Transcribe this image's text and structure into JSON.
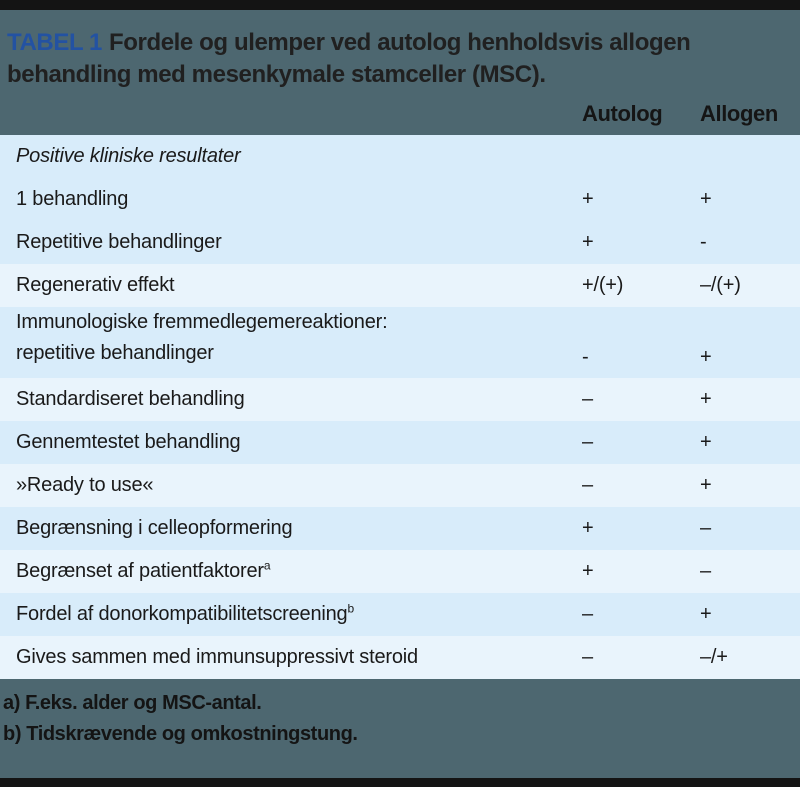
{
  "theme": {
    "page_bg": "#4d6770",
    "bar": "#141414",
    "tabel_blue": "#2352a2",
    "title_text": "#202020",
    "row_dark": "#d8ecfa",
    "row_light": "#e9f4fc",
    "body_text": "#1a1a1a",
    "header_text": "#151515",
    "footnote_text": "#141414"
  },
  "header": {
    "table_label": "TABEL 1",
    "title": "Fordele og ulemper ved autolog henholdsvis allogen behandling med mesenkymale stamceller (MSC)."
  },
  "columns": {
    "autolog": "Autolog",
    "allogen": "Allogen"
  },
  "table": {
    "rows": [
      {
        "label": "Positive kliniske resultater",
        "italic": true,
        "autolog": "",
        "allogen": "",
        "shade": "dark"
      },
      {
        "label": "1 behandling",
        "autolog": "+",
        "allogen": "+",
        "shade": "dark"
      },
      {
        "label": "Repetitive behandlinger",
        "autolog": "+",
        "allogen": "-",
        "shade": "dark"
      },
      {
        "label": "Regenerativ effekt",
        "autolog": "+/(+)",
        "allogen": "–/(+)",
        "shade": "light"
      },
      {
        "label": "Immunologiske fremmedlegemereaktioner:",
        "label2": "repetitive behandlinger",
        "autolog": "-",
        "allogen": "+",
        "shade": "dark"
      },
      {
        "label": "Standardiseret behandling",
        "autolog": "–",
        "allogen": "+",
        "shade": "light"
      },
      {
        "label": "Gennemtestet behandling",
        "autolog": "–",
        "allogen": "+",
        "shade": "dark"
      },
      {
        "label": "»Ready to use«",
        "autolog": "–",
        "allogen": "+",
        "shade": "light"
      },
      {
        "label": "Begrænsning i celleopformering",
        "autolog": "+",
        "allogen": "–",
        "shade": "dark"
      },
      {
        "label": "Begrænset af patientfaktorer",
        "sup": "a",
        "autolog": "+",
        "allogen": "–",
        "shade": "light"
      },
      {
        "label": "Fordel af donorkompatibilitetscreening",
        "sup": "b",
        "autolog": "–",
        "allogen": "+",
        "shade": "dark"
      },
      {
        "label": "Gives sammen med immunsuppressivt steroid",
        "autolog": "–",
        "allogen": "–/+",
        "shade": "light"
      }
    ]
  },
  "footnotes": [
    "a) F.eks. alder og MSC-antal.",
    "b) Tidskrævende og omkostningstung."
  ]
}
